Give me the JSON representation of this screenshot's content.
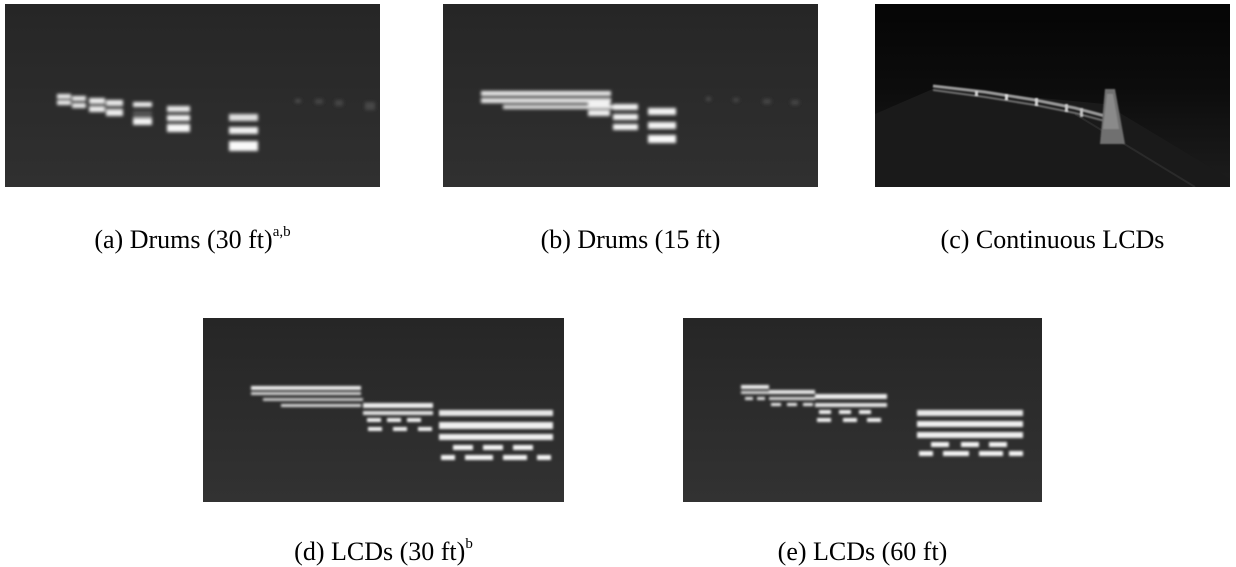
{
  "figures": [
    {
      "caption": "(a) Drums (30 ft)",
      "superscript": "a,b",
      "scene": "drums-30"
    },
    {
      "caption": "(b) Drums (15 ft)",
      "superscript": "",
      "scene": "drums-15"
    },
    {
      "caption": "(c) Continuous LCDs",
      "superscript": "",
      "scene": "continuous-lcds"
    },
    {
      "caption": "(d) LCDs (30 ft)",
      "superscript": "b",
      "scene": "lcds-30"
    },
    {
      "caption": "(e) LCDs (60 ft)",
      "superscript": "",
      "scene": "lcds-60"
    }
  ]
}
